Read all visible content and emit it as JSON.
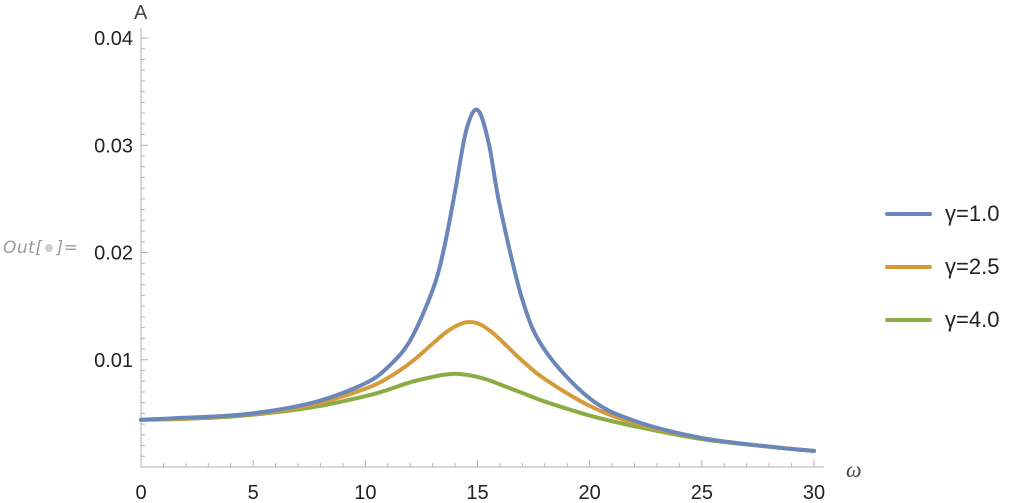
{
  "output_label": {
    "prefix": "Out[",
    "suffix": "]="
  },
  "chart_data": {
    "type": "line",
    "title": "",
    "xlabel": "ω",
    "ylabel": "A",
    "xlim": [
      0,
      30
    ],
    "ylim": [
      0,
      0.04
    ],
    "x_ticks": [
      "0",
      "5",
      "10",
      "15",
      "20",
      "25",
      "30"
    ],
    "y_ticks": [
      "0.01",
      "0.02",
      "0.03",
      "0.04"
    ],
    "grid": false,
    "legend_position": "right",
    "x": [
      0,
      2,
      4,
      6,
      8,
      10,
      11,
      12,
      13,
      13.5,
      14,
      14.5,
      15,
      15.5,
      16,
      17,
      18,
      20,
      22,
      25,
      28,
      30
    ],
    "series": [
      {
        "name": "γ=1.0",
        "color": "#6b86b8",
        "values": [
          0.0044,
          0.0046,
          0.0048,
          0.0053,
          0.0062,
          0.0078,
          0.0093,
          0.0118,
          0.0165,
          0.0203,
          0.0257,
          0.0314,
          0.0333,
          0.0302,
          0.0243,
          0.0156,
          0.0109,
          0.0064,
          0.0043,
          0.0027,
          0.0019,
          0.0015
        ]
      },
      {
        "name": "γ=2.5",
        "color": "#d59b3b",
        "values": [
          0.0044,
          0.0045,
          0.0048,
          0.0052,
          0.006,
          0.0073,
          0.0083,
          0.0097,
          0.0115,
          0.0124,
          0.0131,
          0.0135,
          0.0134,
          0.0128,
          0.0119,
          0.0099,
          0.0082,
          0.0057,
          0.0041,
          0.0027,
          0.0019,
          0.0015
        ]
      },
      {
        "name": "γ=4.0",
        "color": "#8bac43",
        "values": [
          0.0044,
          0.0045,
          0.0047,
          0.0051,
          0.0057,
          0.0066,
          0.0072,
          0.0079,
          0.0084,
          0.0086,
          0.0087,
          0.0086,
          0.0084,
          0.0081,
          0.0077,
          0.0069,
          0.0061,
          0.0048,
          0.0038,
          0.0026,
          0.0019,
          0.0015
        ]
      }
    ]
  }
}
